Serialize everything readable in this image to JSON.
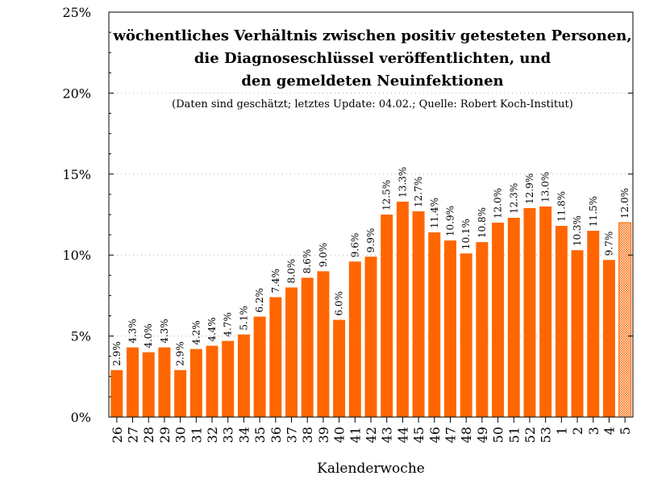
{
  "chart_data": {
    "type": "bar",
    "title_lines": [
      "wöchentliches Verhältnis zwischen positiv getesteten Personen,",
      "die Diagnoseschlüssel veröffentlichten, und",
      "den gemeldeten Neuinfektionen"
    ],
    "subtitle": "(Daten sind geschätzt; letztes Update: 04.02.; Quelle: Robert Koch-Institut)",
    "xlabel": "Kalenderwoche",
    "ylabel": "",
    "ylim": [
      0,
      25
    ],
    "yticks": [
      0,
      5,
      10,
      15,
      20,
      25
    ],
    "ytick_labels": [
      "0%",
      "5%",
      "10%",
      "15%",
      "20%",
      "25%"
    ],
    "grid": "horizontal dotted",
    "bar_color": "#ff6600",
    "estimated_bar_pattern": "crosshatch",
    "categories": [
      "26",
      "27",
      "28",
      "29",
      "30",
      "31",
      "32",
      "33",
      "34",
      "35",
      "36",
      "37",
      "38",
      "39",
      "40",
      "41",
      "42",
      "43",
      "44",
      "45",
      "46",
      "47",
      "48",
      "49",
      "50",
      "51",
      "52",
      "53",
      "1",
      "2",
      "3",
      "4",
      "5"
    ],
    "values": [
      2.9,
      4.3,
      4.0,
      4.3,
      2.9,
      4.2,
      4.4,
      4.7,
      5.1,
      6.2,
      7.4,
      8.0,
      8.6,
      9.0,
      6.0,
      9.6,
      9.9,
      12.5,
      13.3,
      12.7,
      11.4,
      10.9,
      10.1,
      10.8,
      12.0,
      12.3,
      12.9,
      13.0,
      11.8,
      10.3,
      11.5,
      9.7,
      12.0
    ],
    "value_labels": [
      "2.9%",
      "4.3%",
      "4.0%",
      "4.3%",
      "2.9%",
      "4.2%",
      "4.4%",
      "4.7%",
      "5.1%",
      "6.2%",
      "7.4%",
      "8.0%",
      "8.6%",
      "9.0%",
      "6.0%",
      "9.6%",
      "9.9%",
      "12.5%",
      "13.3%",
      "12.7%",
      "11.4%",
      "10.9%",
      "10.1%",
      "10.8%",
      "12.0%",
      "12.3%",
      "12.9%",
      "13.0%",
      "11.8%",
      "10.3%",
      "11.5%",
      "9.7%",
      "12.0%"
    ],
    "estimated": [
      false,
      false,
      false,
      false,
      false,
      false,
      false,
      false,
      false,
      false,
      false,
      false,
      false,
      false,
      false,
      false,
      false,
      false,
      false,
      false,
      false,
      false,
      false,
      false,
      false,
      false,
      false,
      false,
      false,
      false,
      false,
      false,
      true
    ]
  }
}
